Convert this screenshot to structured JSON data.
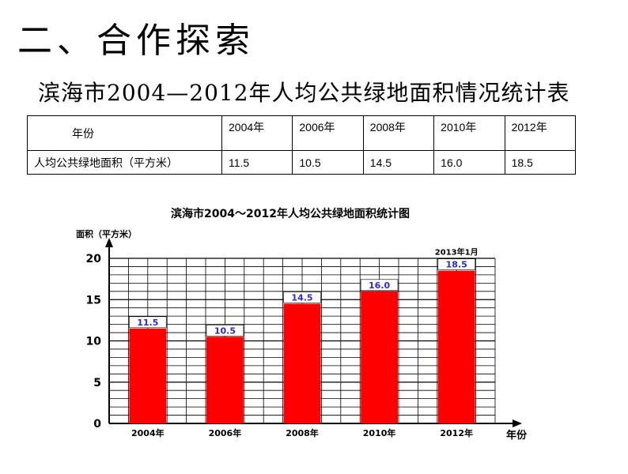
{
  "header": {
    "section_title": "二、合作探索",
    "table_title": "滨海市2004—2012年人均公共绿地面积情况统计表"
  },
  "table": {
    "header_label": "年份",
    "row_label": "人均公共绿地面积（平方米）",
    "years": [
      "2004年",
      "2006年",
      "2008年",
      "2010年",
      "2012年"
    ],
    "values": [
      "11.5",
      "10.5",
      "14.5",
      "16.0",
      "18.5"
    ]
  },
  "chart_data": {
    "type": "bar",
    "title": "滨海市2004～2012年人均公共绿地面积统计图",
    "ylabel": "面积（平方米）",
    "xlabel": "年份",
    "categories": [
      "2004年",
      "2006年",
      "2008年",
      "2010年",
      "2012年"
    ],
    "values": [
      11.5,
      10.5,
      14.5,
      16.0,
      18.5
    ],
    "value_labels": [
      "11.5",
      "10.5",
      "14.5",
      "16.0",
      "18.5"
    ],
    "yticks": [
      0,
      5,
      10,
      15,
      20
    ],
    "ylim": [
      0,
      20
    ],
    "grid": true,
    "annotation": "2013年1月",
    "colors": {
      "bar": "#ff0000",
      "value_label": "#2b2bd6",
      "grid": "#000000"
    }
  }
}
